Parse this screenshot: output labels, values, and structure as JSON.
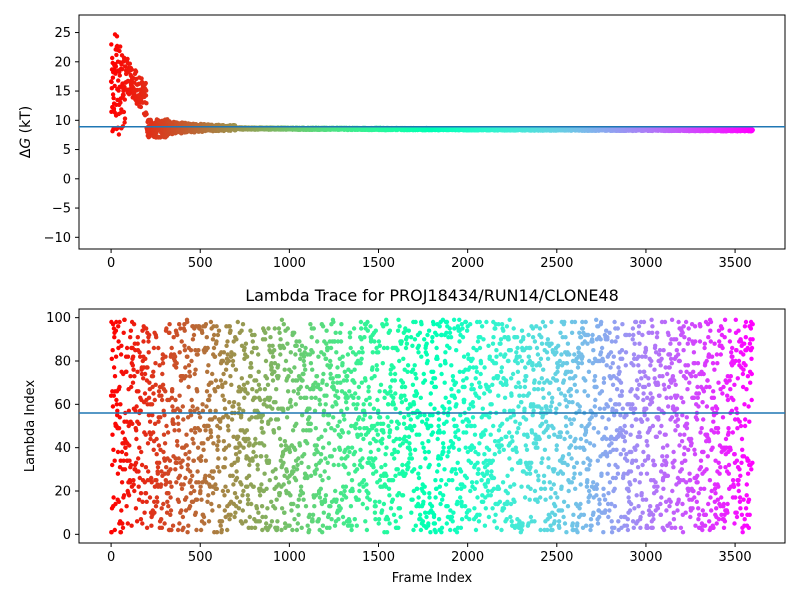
{
  "colors": {
    "hline": "#1f77b4",
    "colormap": "rainbow"
  },
  "chart_data": [
    {
      "type": "scatter",
      "title": "",
      "xlabel": "",
      "ylabel_prefix": "Δ",
      "ylabel_var": "G",
      "ylabel_unit": " (kT)",
      "xlim": [
        -180,
        3780
      ],
      "ylim": [
        -12,
        28
      ],
      "xticks": [
        0,
        500,
        1000,
        1500,
        2000,
        2500,
        3000,
        3500
      ],
      "yticks": [
        -10,
        -5,
        0,
        5,
        10,
        15,
        20,
        25
      ],
      "n_frames": 3600,
      "hline_y": 8.9,
      "color_by": "frame index (rainbow colormap, red at 0 to violet at 3600)",
      "series_profile": [
        {
          "x_range": [
            0,
            80
          ],
          "y_approx": [
            4,
            26.5
          ],
          "note": "wide scatter"
        },
        {
          "x_range": [
            80,
            200
          ],
          "y_approx": [
            12,
            22
          ]
        },
        {
          "x_range": [
            200,
            320
          ],
          "y_approx": [
            6,
            11
          ]
        },
        {
          "x_range": [
            320,
            700
          ],
          "y_approx": [
            7.5,
            10
          ]
        },
        {
          "x_range": [
            700,
            3600
          ],
          "y_approx": [
            8.1,
            8.6
          ],
          "note": "converged"
        }
      ]
    },
    {
      "type": "scatter",
      "title": "Lambda Trace for PROJ18434/RUN14/CLONE48",
      "xlabel": "Frame Index",
      "ylabel": "Lambda Index",
      "xlim": [
        -180,
        3780
      ],
      "ylim": [
        -4,
        104
      ],
      "xticks": [
        0,
        500,
        1000,
        1500,
        2000,
        2500,
        3000,
        3500
      ],
      "yticks": [
        0,
        20,
        40,
        60,
        80,
        100
      ],
      "n_frames": 3600,
      "hline_y": 56,
      "color_by": "frame index (rainbow colormap, red at 0 to violet at 3600)",
      "y_range_values": [
        1,
        99
      ],
      "note": "lambda index values spread approximately uniformly over 1-99 across all frames"
    }
  ]
}
